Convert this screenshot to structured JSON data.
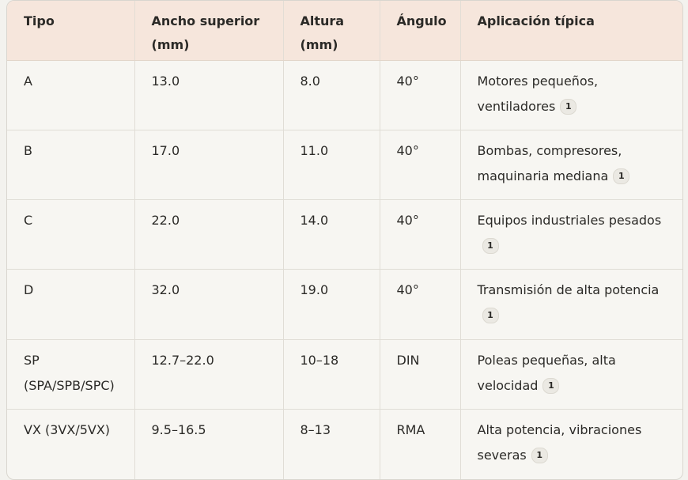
{
  "table": {
    "headers": [
      "Tipo",
      "Ancho superior (mm)",
      "Altura (mm)",
      "Ángulo",
      "Aplicación típica"
    ],
    "rows": [
      {
        "tipo": "A",
        "ancho": "13.0",
        "altura": "8.0",
        "angulo": "40°",
        "aplicacion": "Motores pequeños, ventiladores",
        "cite": "1"
      },
      {
        "tipo": "B",
        "ancho": "17.0",
        "altura": "11.0",
        "angulo": "40°",
        "aplicacion": "Bombas, compresores, maquinaria mediana",
        "cite": "1"
      },
      {
        "tipo": "C",
        "ancho": "22.0",
        "altura": "14.0",
        "angulo": "40°",
        "aplicacion": "Equipos industriales pesados",
        "cite": "1"
      },
      {
        "tipo": "D",
        "ancho": "32.0",
        "altura": "19.0",
        "angulo": "40°",
        "aplicacion": "Transmisión de alta potencia",
        "cite": "1"
      },
      {
        "tipo": "SP (SPA/SPB/SPC)",
        "ancho": "12.7–22.0",
        "altura": "10–18",
        "angulo": "DIN",
        "aplicacion": "Poleas pequeñas, alta velocidad",
        "cite": "1"
      },
      {
        "tipo": "VX (3VX/5VX)",
        "ancho": "9.5–16.5",
        "altura": "8–13",
        "angulo": "RMA",
        "aplicacion": "Alta potencia, vibraciones severas",
        "cite": "1"
      }
    ]
  }
}
